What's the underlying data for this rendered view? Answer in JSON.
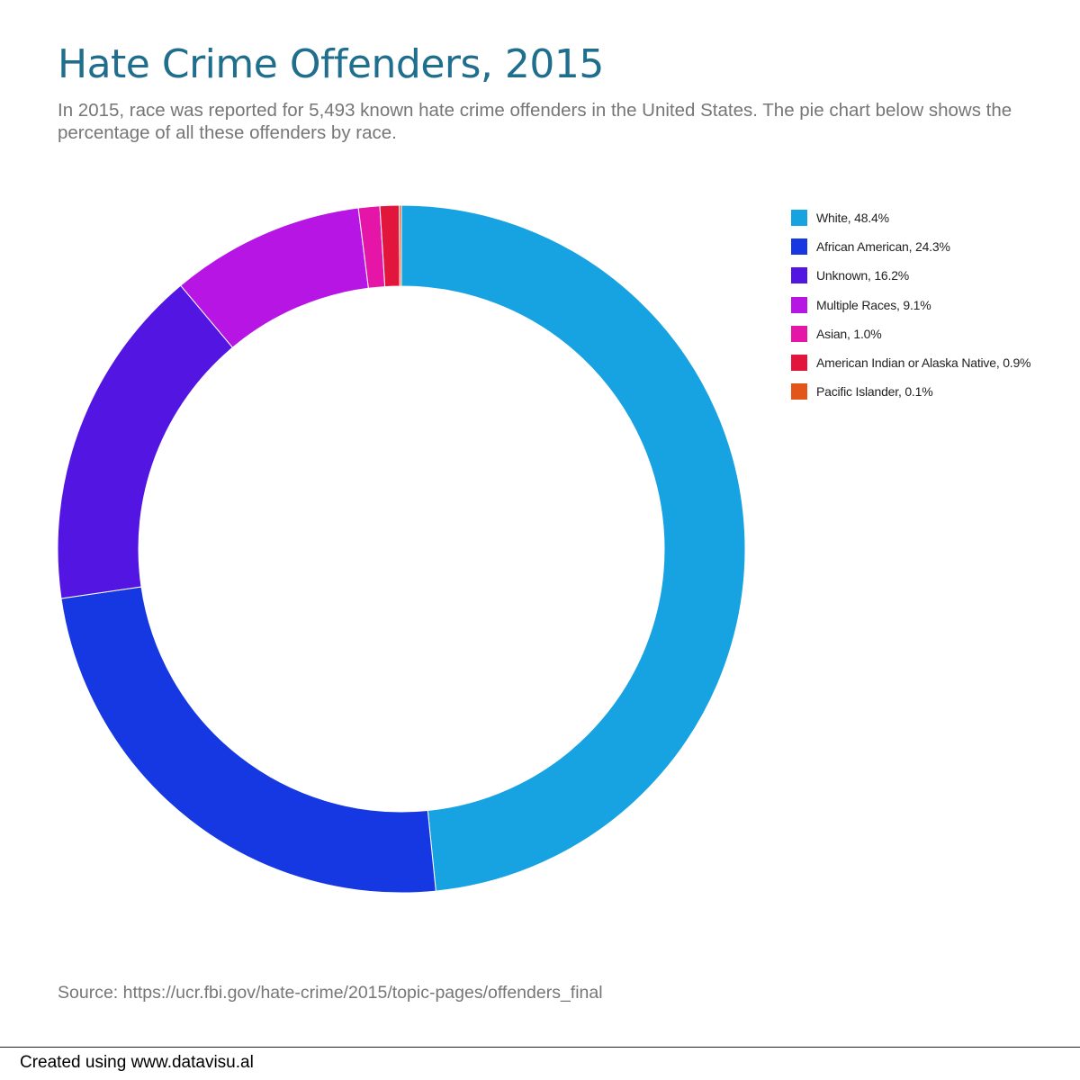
{
  "chart_data": {
    "type": "pie",
    "title": "Hate Crime Offenders, 2015",
    "subtitle": "In 2015, race was reported for 5,493 known hate crime offenders in the United States. The pie chart below shows the percentage of all these offenders by race.",
    "categories": [
      "White",
      "African American",
      "Unknown",
      "Multiple Races",
      "Asian",
      "American Indian or Alaska Native",
      "Pacific Islander"
    ],
    "values": [
      48.4,
      24.3,
      16.2,
      9.1,
      1.0,
      0.9,
      0.1
    ],
    "unit": "%",
    "legend_labels": [
      "White, 48.4%",
      "African American, 24.3%",
      "Unknown, 16.2%",
      "Multiple Races, 9.1%",
      "Asian, 1.0%",
      "American Indian or Alaska Native, 0.9%",
      "Pacific Islander, 0.1%"
    ],
    "colors": [
      "#17a2e1",
      "#1538e2",
      "#5315e2",
      "#b715e4",
      "#e515a7",
      "#e2153d",
      "#e2561a"
    ],
    "legend_position": "top-right",
    "donut": true,
    "source": "Source: https://ucr.fbi.gov/hate-crime/2015/topic-pages/offenders_final"
  },
  "footer": {
    "credit": "Created using www.datavisu.al"
  }
}
